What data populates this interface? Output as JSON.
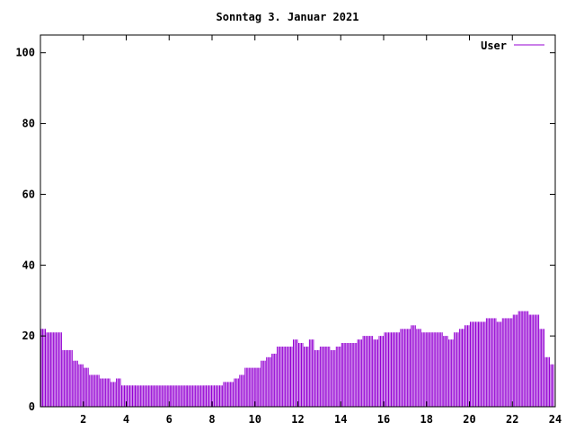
{
  "chart_data": {
    "type": "bar",
    "title": "Sonntag 3. Januar 2021",
    "xlabel": "",
    "ylabel": "",
    "xlim": [
      0,
      24
    ],
    "ylim": [
      0,
      105
    ],
    "xticks": [
      2,
      4,
      6,
      8,
      10,
      12,
      14,
      16,
      18,
      20,
      22,
      24
    ],
    "yticks": [
      0,
      20,
      40,
      60,
      80,
      100
    ],
    "legend_position": "top-right",
    "grid": false,
    "series": [
      {
        "name": "User",
        "color": "#9400d3",
        "points": [
          [
            0.0,
            22
          ],
          [
            0.25,
            21
          ],
          [
            0.5,
            21
          ],
          [
            0.75,
            21
          ],
          [
            1.0,
            16
          ],
          [
            1.25,
            16
          ],
          [
            1.5,
            13
          ],
          [
            1.75,
            12
          ],
          [
            2.0,
            11
          ],
          [
            2.25,
            9
          ],
          [
            2.5,
            9
          ],
          [
            2.75,
            8
          ],
          [
            3.0,
            8
          ],
          [
            3.25,
            7
          ],
          [
            3.5,
            8
          ],
          [
            3.75,
            6
          ],
          [
            4.0,
            6
          ],
          [
            4.25,
            6
          ],
          [
            4.5,
            6
          ],
          [
            4.75,
            6
          ],
          [
            5.0,
            6
          ],
          [
            5.25,
            6
          ],
          [
            5.5,
            6
          ],
          [
            5.75,
            6
          ],
          [
            6.0,
            6
          ],
          [
            6.25,
            6
          ],
          [
            6.5,
            6
          ],
          [
            6.75,
            6
          ],
          [
            7.0,
            6
          ],
          [
            7.25,
            6
          ],
          [
            7.5,
            6
          ],
          [
            7.75,
            6
          ],
          [
            8.0,
            6
          ],
          [
            8.25,
            6
          ],
          [
            8.5,
            7
          ],
          [
            8.75,
            7
          ],
          [
            9.0,
            8
          ],
          [
            9.25,
            9
          ],
          [
            9.5,
            11
          ],
          [
            9.75,
            11
          ],
          [
            10.0,
            11
          ],
          [
            10.25,
            13
          ],
          [
            10.5,
            14
          ],
          [
            10.75,
            15
          ],
          [
            11.0,
            17
          ],
          [
            11.25,
            17
          ],
          [
            11.5,
            17
          ],
          [
            11.75,
            19
          ],
          [
            12.0,
            18
          ],
          [
            12.25,
            17
          ],
          [
            12.5,
            19
          ],
          [
            12.75,
            16
          ],
          [
            13.0,
            17
          ],
          [
            13.25,
            17
          ],
          [
            13.5,
            16
          ],
          [
            13.75,
            17
          ],
          [
            14.0,
            18
          ],
          [
            14.25,
            18
          ],
          [
            14.5,
            18
          ],
          [
            14.75,
            19
          ],
          [
            15.0,
            20
          ],
          [
            15.25,
            20
          ],
          [
            15.5,
            19
          ],
          [
            15.75,
            20
          ],
          [
            16.0,
            21
          ],
          [
            16.25,
            21
          ],
          [
            16.5,
            21
          ],
          [
            16.75,
            22
          ],
          [
            17.0,
            22
          ],
          [
            17.25,
            23
          ],
          [
            17.5,
            22
          ],
          [
            17.75,
            21
          ],
          [
            18.0,
            21
          ],
          [
            18.25,
            21
          ],
          [
            18.5,
            21
          ],
          [
            18.75,
            20
          ],
          [
            19.0,
            19
          ],
          [
            19.25,
            21
          ],
          [
            19.5,
            22
          ],
          [
            19.75,
            23
          ],
          [
            20.0,
            24
          ],
          [
            20.25,
            24
          ],
          [
            20.5,
            24
          ],
          [
            20.75,
            25
          ],
          [
            21.0,
            25
          ],
          [
            21.25,
            24
          ],
          [
            21.5,
            25
          ],
          [
            21.75,
            25
          ],
          [
            22.0,
            26
          ],
          [
            22.25,
            27
          ],
          [
            22.5,
            27
          ],
          [
            22.75,
            26
          ],
          [
            23.0,
            26
          ],
          [
            23.25,
            22
          ],
          [
            23.5,
            14
          ],
          [
            23.75,
            12
          ]
        ]
      }
    ]
  }
}
